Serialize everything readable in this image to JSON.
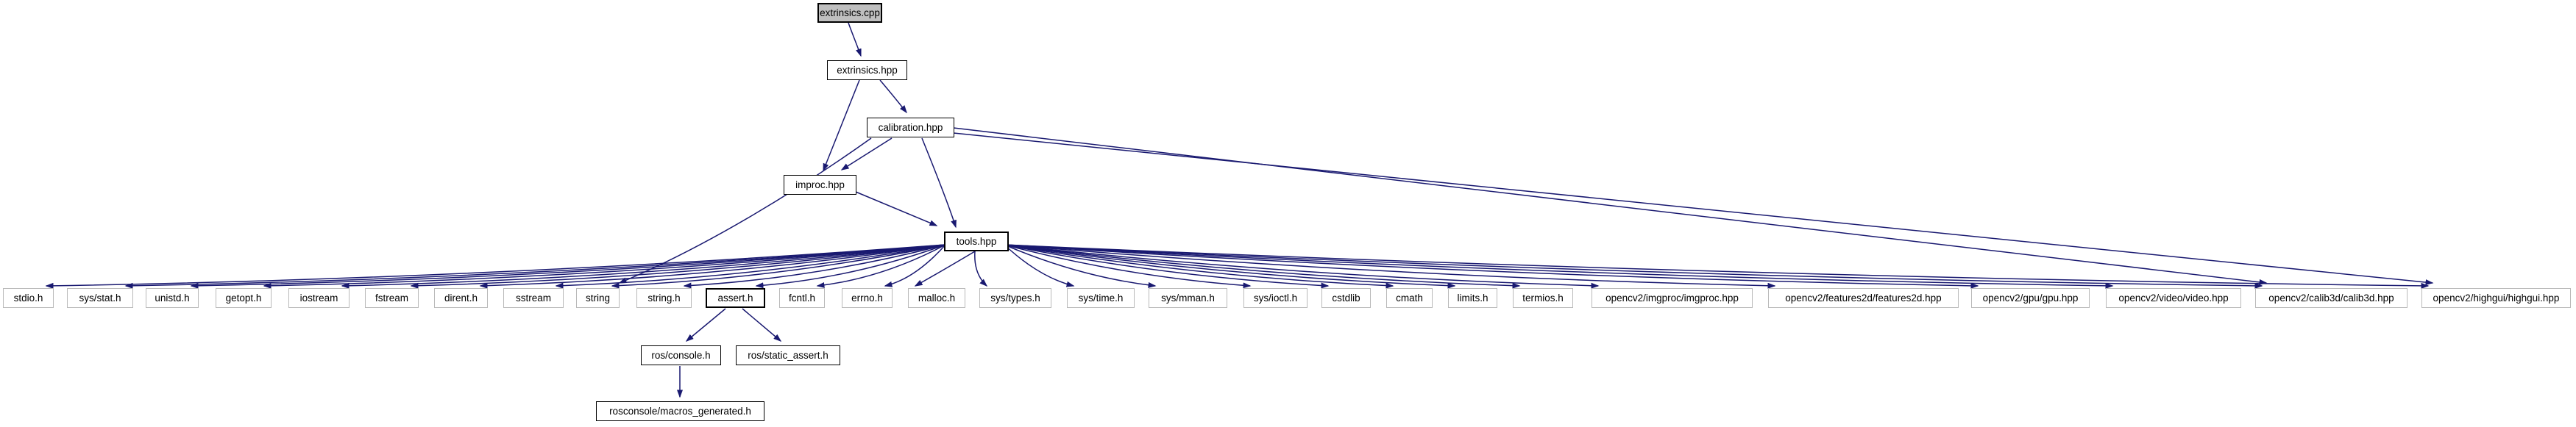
{
  "diagram": {
    "type": "include-dependency-graph",
    "root_file": "extrinsics.cpp",
    "edge_color": "#191970",
    "root_fill": "#bfbfbf",
    "node_fill": "#ffffff",
    "linked_border": "#000000",
    "leaf_border": "#b9b9b9"
  },
  "nodes": [
    {
      "id": "extrinsics.cpp",
      "label": "extrinsics.cpp",
      "kind": "root"
    },
    {
      "id": "extrinsics.hpp",
      "label": "extrinsics.hpp",
      "kind": "linked"
    },
    {
      "id": "calibration.hpp",
      "label": "calibration.hpp",
      "kind": "linked"
    },
    {
      "id": "improc.hpp",
      "label": "improc.hpp",
      "kind": "linked"
    },
    {
      "id": "tools.hpp",
      "label": "tools.hpp",
      "kind": "bold"
    },
    {
      "id": "stdio.h",
      "label": "stdio.h",
      "kind": "leaf"
    },
    {
      "id": "sys/stat.h",
      "label": "sys/stat.h",
      "kind": "leaf"
    },
    {
      "id": "unistd.h",
      "label": "unistd.h",
      "kind": "leaf"
    },
    {
      "id": "getopt.h",
      "label": "getopt.h",
      "kind": "leaf"
    },
    {
      "id": "iostream",
      "label": "iostream",
      "kind": "leaf"
    },
    {
      "id": "fstream",
      "label": "fstream",
      "kind": "leaf"
    },
    {
      "id": "dirent.h",
      "label": "dirent.h",
      "kind": "leaf"
    },
    {
      "id": "sstream",
      "label": "sstream",
      "kind": "leaf"
    },
    {
      "id": "string",
      "label": "string",
      "kind": "leaf"
    },
    {
      "id": "string.h",
      "label": "string.h",
      "kind": "leaf"
    },
    {
      "id": "assert.h",
      "label": "assert.h",
      "kind": "bold"
    },
    {
      "id": "fcntl.h",
      "label": "fcntl.h",
      "kind": "leaf"
    },
    {
      "id": "errno.h",
      "label": "errno.h",
      "kind": "leaf"
    },
    {
      "id": "malloc.h",
      "label": "malloc.h",
      "kind": "leaf"
    },
    {
      "id": "sys/types.h",
      "label": "sys/types.h",
      "kind": "leaf"
    },
    {
      "id": "sys/time.h",
      "label": "sys/time.h",
      "kind": "leaf"
    },
    {
      "id": "sys/mman.h",
      "label": "sys/mman.h",
      "kind": "leaf"
    },
    {
      "id": "sys/ioctl.h",
      "label": "sys/ioctl.h",
      "kind": "leaf"
    },
    {
      "id": "cstdlib",
      "label": "cstdlib",
      "kind": "leaf"
    },
    {
      "id": "cmath",
      "label": "cmath",
      "kind": "leaf"
    },
    {
      "id": "limits.h",
      "label": "limits.h",
      "kind": "leaf"
    },
    {
      "id": "termios.h",
      "label": "termios.h",
      "kind": "leaf"
    },
    {
      "id": "opencv2/imgproc/imgproc.hpp",
      "label": "opencv2/imgproc/imgproc.hpp",
      "kind": "leaf"
    },
    {
      "id": "opencv2/features2d/features2d.hpp",
      "label": "opencv2/features2d/features2d.hpp",
      "kind": "leaf"
    },
    {
      "id": "opencv2/gpu/gpu.hpp",
      "label": "opencv2/gpu/gpu.hpp",
      "kind": "leaf"
    },
    {
      "id": "opencv2/video/video.hpp",
      "label": "opencv2/video/video.hpp",
      "kind": "leaf"
    },
    {
      "id": "opencv2/calib3d/calib3d.hpp",
      "label": "opencv2/calib3d/calib3d.hpp",
      "kind": "leaf"
    },
    {
      "id": "opencv2/highgui/highgui.hpp",
      "label": "opencv2/highgui/highgui.hpp",
      "kind": "leaf"
    },
    {
      "id": "ros/console.h",
      "label": "ros/console.h",
      "kind": "linked"
    },
    {
      "id": "ros/static_assert.h",
      "label": "ros/static_assert.h",
      "kind": "linked"
    },
    {
      "id": "rosconsole/macros_generated.h",
      "label": "rosconsole/macros_generated.h",
      "kind": "linked"
    }
  ],
  "edges": [
    {
      "from": "extrinsics.cpp",
      "to": "extrinsics.hpp"
    },
    {
      "from": "extrinsics.hpp",
      "to": "calibration.hpp"
    },
    {
      "from": "extrinsics.hpp",
      "to": "improc.hpp"
    },
    {
      "from": "calibration.hpp",
      "to": "improc.hpp"
    },
    {
      "from": "calibration.hpp",
      "to": "tools.hpp"
    },
    {
      "from": "calibration.hpp",
      "to": "string"
    },
    {
      "from": "calibration.hpp",
      "to": "opencv2/calib3d/calib3d.hpp"
    },
    {
      "from": "calibration.hpp",
      "to": "opencv2/highgui/highgui.hpp"
    },
    {
      "from": "improc.hpp",
      "to": "tools.hpp"
    },
    {
      "from": "tools.hpp",
      "to": "stdio.h"
    },
    {
      "from": "tools.hpp",
      "to": "sys/stat.h"
    },
    {
      "from": "tools.hpp",
      "to": "unistd.h"
    },
    {
      "from": "tools.hpp",
      "to": "getopt.h"
    },
    {
      "from": "tools.hpp",
      "to": "iostream"
    },
    {
      "from": "tools.hpp",
      "to": "fstream"
    },
    {
      "from": "tools.hpp",
      "to": "dirent.h"
    },
    {
      "from": "tools.hpp",
      "to": "sstream"
    },
    {
      "from": "tools.hpp",
      "to": "string"
    },
    {
      "from": "tools.hpp",
      "to": "string.h"
    },
    {
      "from": "tools.hpp",
      "to": "assert.h"
    },
    {
      "from": "tools.hpp",
      "to": "fcntl.h"
    },
    {
      "from": "tools.hpp",
      "to": "errno.h"
    },
    {
      "from": "tools.hpp",
      "to": "malloc.h"
    },
    {
      "from": "tools.hpp",
      "to": "sys/types.h"
    },
    {
      "from": "tools.hpp",
      "to": "sys/time.h"
    },
    {
      "from": "tools.hpp",
      "to": "sys/mman.h"
    },
    {
      "from": "tools.hpp",
      "to": "sys/ioctl.h"
    },
    {
      "from": "tools.hpp",
      "to": "cstdlib"
    },
    {
      "from": "tools.hpp",
      "to": "cmath"
    },
    {
      "from": "tools.hpp",
      "to": "limits.h"
    },
    {
      "from": "tools.hpp",
      "to": "termios.h"
    },
    {
      "from": "tools.hpp",
      "to": "opencv2/imgproc/imgproc.hpp"
    },
    {
      "from": "tools.hpp",
      "to": "opencv2/features2d/features2d.hpp"
    },
    {
      "from": "tools.hpp",
      "to": "opencv2/gpu/gpu.hpp"
    },
    {
      "from": "tools.hpp",
      "to": "opencv2/video/video.hpp"
    },
    {
      "from": "tools.hpp",
      "to": "opencv2/calib3d/calib3d.hpp"
    },
    {
      "from": "tools.hpp",
      "to": "opencv2/highgui/highgui.hpp"
    },
    {
      "from": "assert.h",
      "to": "ros/console.h"
    },
    {
      "from": "assert.h",
      "to": "ros/static_assert.h"
    },
    {
      "from": "ros/console.h",
      "to": "rosconsole/macros_generated.h"
    }
  ]
}
